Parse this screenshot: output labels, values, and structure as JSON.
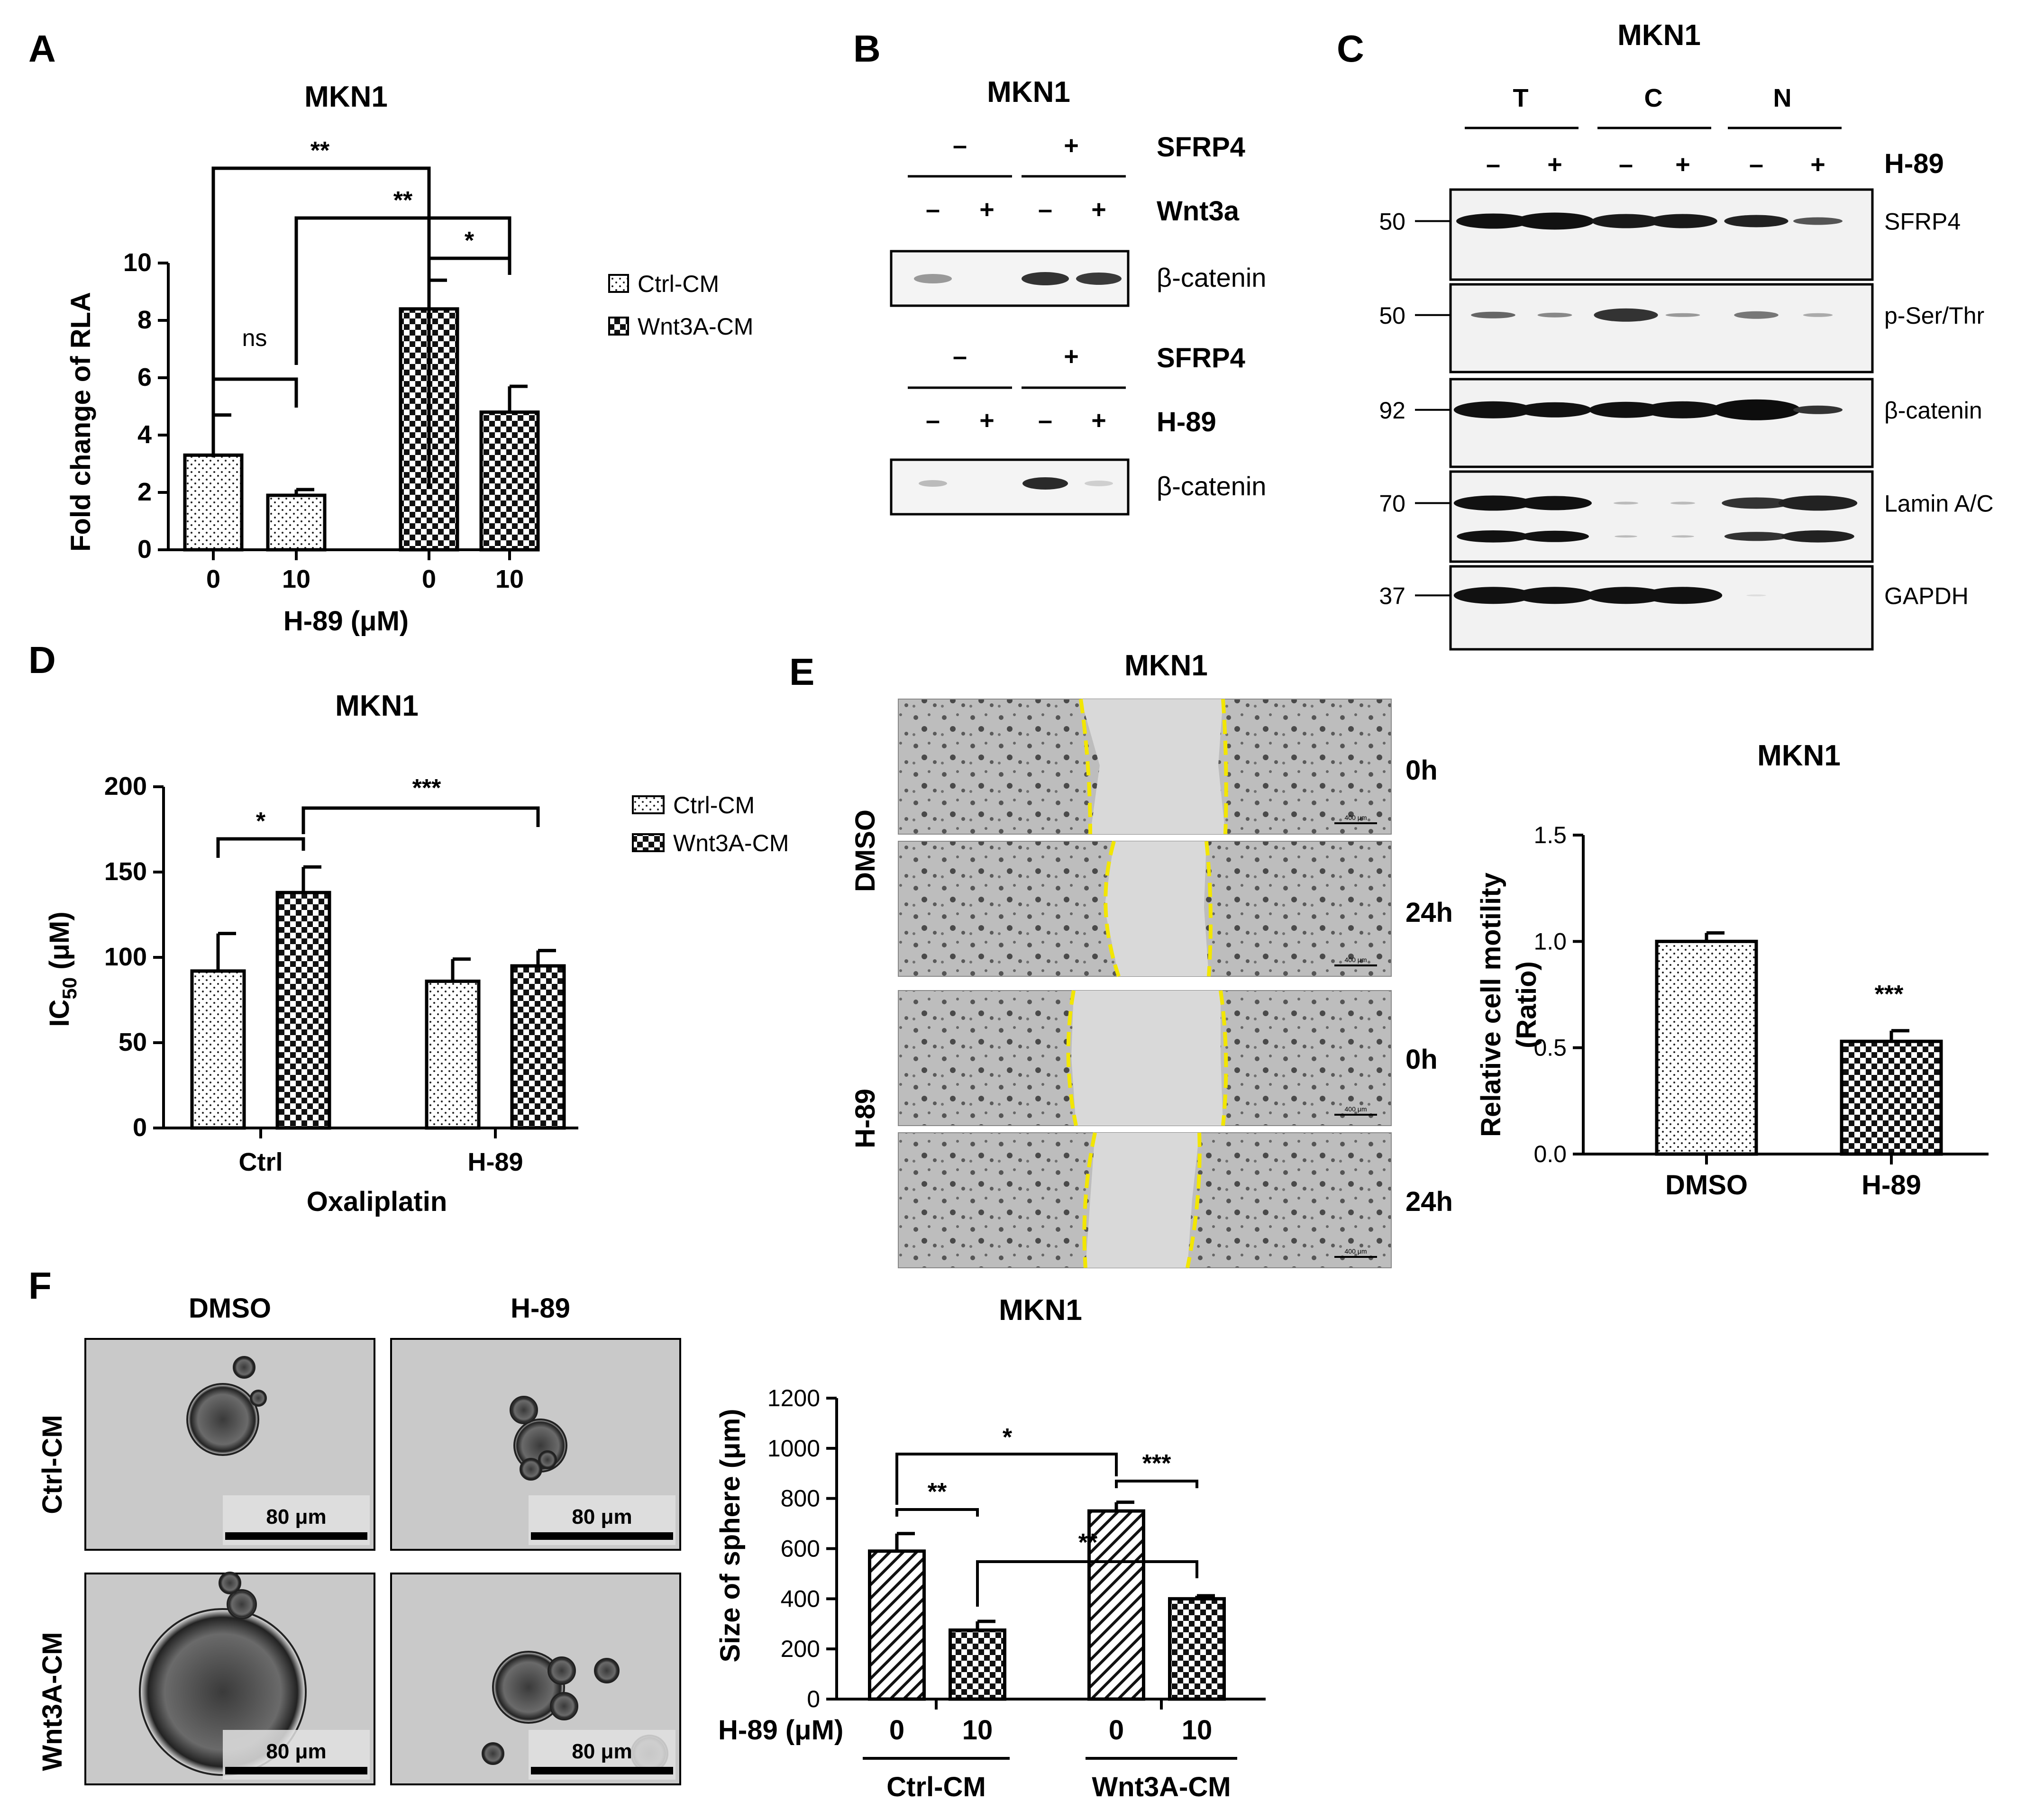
{
  "panels": {
    "A": {
      "letter": "A",
      "title": "MKN1",
      "ylabel": "Fold change of RLA",
      "xlabel": "H-89 (μM)",
      "yticks": [
        "0",
        "2",
        "4",
        "6",
        "8",
        "10"
      ],
      "xticks": [
        "0",
        "10",
        "0",
        "10"
      ],
      "legend": [
        "Ctrl-CM",
        "Wnt3A-CM"
      ],
      "sig": [
        "**",
        "**",
        "*",
        "ns"
      ]
    },
    "B": {
      "letter": "B",
      "title": "MKN1",
      "rows": [
        "SFRP4",
        "Wnt3a",
        "β-catenin",
        "SFRP4",
        "H-89",
        "β-catenin"
      ],
      "signs": {
        "minus": "–",
        "plus": "+"
      }
    },
    "C": {
      "letter": "C",
      "title": "MKN1",
      "groups": [
        "T",
        "C",
        "N"
      ],
      "treat": "H-89",
      "mw": [
        "50",
        "50",
        "92",
        "70",
        "37"
      ],
      "proteins": [
        "SFRP4",
        "p-Ser/Thr",
        "β-catenin",
        "Lamin A/C",
        "GAPDH"
      ]
    },
    "D": {
      "letter": "D",
      "title": "MKN1",
      "ylabel": "IC",
      "ylabel_sub": "50",
      "ylabel_unit": " (μM)",
      "xlabel": "Oxaliplatin",
      "yticks": [
        "0",
        "50",
        "100",
        "150",
        "200"
      ],
      "xticks": [
        "Ctrl",
        "H-89"
      ],
      "legend": [
        "Ctrl-CM",
        "Wnt3A-CM"
      ],
      "sig": [
        "*",
        "***"
      ]
    },
    "E": {
      "letter": "E",
      "title": "MKN1",
      "chart_title": "MKN1",
      "row_groups": [
        "DMSO",
        "H-89"
      ],
      "times": [
        "0h",
        "24h",
        "0h",
        "24h"
      ],
      "scalebar": "400 μm",
      "ylabel1": "Relative cell motility",
      "ylabel2": "(Ratio)",
      "yticks": [
        "0.0",
        "0.5",
        "1.0",
        "1.5"
      ],
      "xticks": [
        "DMSO",
        "H-89"
      ],
      "sig": "***"
    },
    "F": {
      "letter": "F",
      "cols": [
        "DMSO",
        "H-89"
      ],
      "rows": [
        "Ctrl-CM",
        "Wnt3A-CM"
      ],
      "scalebar": "80 μm",
      "title": "MKN1",
      "ylabel": "Size of sphere (μm)",
      "yticks": [
        "0",
        "200",
        "400",
        "600",
        "800",
        "1000",
        "1200"
      ],
      "row_label": "H-89 (μM)",
      "xticks": [
        "0",
        "10",
        "0",
        "10"
      ],
      "groups": [
        "Ctrl-CM",
        "Wnt3A-CM"
      ],
      "sig": [
        "**",
        "*",
        "**",
        "***"
      ]
    }
  },
  "chart_data": [
    {
      "panel": "A",
      "type": "bar",
      "title": "MKN1",
      "xlabel": "H-89 (μM)",
      "ylabel": "Fold change of RLA",
      "ylim": [
        0,
        10
      ],
      "categories": [
        "0",
        "10",
        "0",
        "10"
      ],
      "series": [
        {
          "name": "Ctrl-CM",
          "values": [
            3.3,
            1.9,
            null,
            null
          ],
          "errors": [
            1.4,
            0.2,
            null,
            null
          ]
        },
        {
          "name": "Wnt3A-CM",
          "values": [
            null,
            null,
            8.4,
            4.8
          ],
          "errors": [
            null,
            null,
            1.0,
            0.9
          ]
        }
      ]
    },
    {
      "panel": "D",
      "type": "bar",
      "title": "MKN1",
      "xlabel": "Oxaliplatin",
      "ylabel": "IC50 (μM)",
      "ylim": [
        0,
        200
      ],
      "categories": [
        "Ctrl",
        "H-89"
      ],
      "series": [
        {
          "name": "Ctrl-CM",
          "values": [
            92,
            86
          ],
          "errors": [
            22,
            13
          ]
        },
        {
          "name": "Wnt3A-CM",
          "values": [
            138,
            95
          ],
          "errors": [
            15,
            9
          ]
        }
      ]
    },
    {
      "panel": "E",
      "type": "bar",
      "title": "MKN1",
      "ylabel": "Relative cell motility (Ratio)",
      "ylim": [
        0,
        1.5
      ],
      "categories": [
        "DMSO",
        "H-89"
      ],
      "values": [
        1.0,
        0.53
      ],
      "errors": [
        0.04,
        0.05
      ]
    },
    {
      "panel": "F",
      "type": "bar",
      "title": "MKN1",
      "ylabel": "Size of sphere (μm)",
      "ylim": [
        0,
        1200
      ],
      "categories": [
        "0",
        "10",
        "0",
        "10"
      ],
      "groups": [
        "Ctrl-CM",
        "Ctrl-CM",
        "Wnt3A-CM",
        "Wnt3A-CM"
      ],
      "values": [
        590,
        275,
        750,
        400
      ],
      "errors": [
        70,
        35,
        35,
        12
      ]
    }
  ],
  "colors": {
    "axis": "#000000",
    "sig_bracket": "#000000",
    "wound_line": "#f2e600",
    "blot_band": "#141414",
    "blot_bg": "#f2f2f2",
    "micro_bg": "#c8c8c8"
  }
}
